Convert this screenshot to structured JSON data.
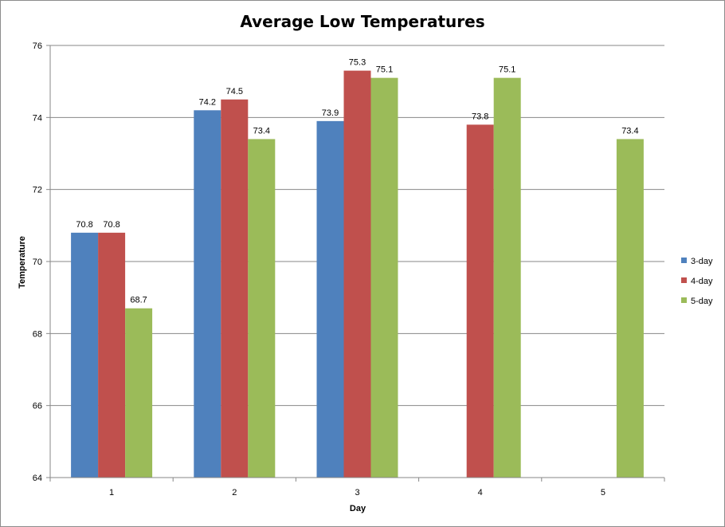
{
  "chart_data": {
    "type": "bar",
    "title": "Average Low Temperatures",
    "xlabel": "Day",
    "ylabel": "Temperature",
    "categories": [
      "1",
      "2",
      "3",
      "4",
      "5"
    ],
    "series": [
      {
        "name": "3-day",
        "color": "#4F81BD",
        "values": [
          70.8,
          74.2,
          73.9,
          null,
          null
        ],
        "labels": [
          "70.8",
          "74.2",
          "73.9",
          null,
          null
        ]
      },
      {
        "name": "4-day",
        "color": "#C0504D",
        "values": [
          70.8,
          74.5,
          75.3,
          73.8,
          null
        ],
        "labels": [
          "70.8",
          "74.5",
          "75.3",
          "73.8",
          null
        ]
      },
      {
        "name": "5-day",
        "color": "#9BBB59",
        "values": [
          68.7,
          73.4,
          75.1,
          75.1,
          73.4
        ],
        "labels": [
          "68.7",
          "73.4",
          "75.1",
          "75.1",
          "73.4"
        ]
      }
    ],
    "ylim": [
      64,
      76
    ],
    "yticks": [
      "64",
      "66",
      "68",
      "70",
      "72",
      "74",
      "76"
    ],
    "grid": true,
    "legend_position": "right"
  }
}
